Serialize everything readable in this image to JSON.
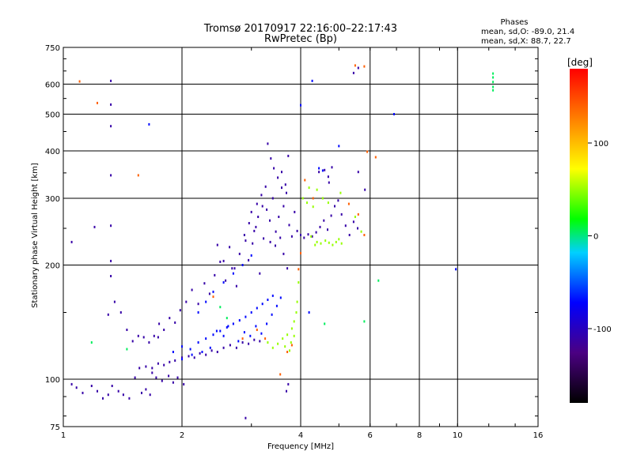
{
  "chart_data": {
    "type": "scatter",
    "title": "Tromsø 20170917 22:16:00–22:17:43",
    "subtitle": "RwPretec (Bp)",
    "xlabel": "Frequency [MHz]",
    "ylabel": "Stationary phase Virtual Height [km]",
    "x_scale": "log",
    "y_scale": "log",
    "xlim": [
      1,
      16
    ],
    "ylim": [
      75,
      750
    ],
    "x_ticks": [
      1,
      2,
      4,
      6,
      8,
      10,
      16
    ],
    "y_ticks": [
      75,
      100,
      200,
      300,
      400,
      500,
      600,
      750
    ],
    "grid": true,
    "stats": {
      "heading": "Phases",
      "line_o": "mean, sd,O: -89.0, 21.4",
      "line_x": "mean, sd,X: 88.7, 22.7"
    },
    "colorbar": {
      "label": "[deg]",
      "range": [
        -180,
        180
      ],
      "ticks": [
        100,
        0,
        -100
      ],
      "tick_labels": [
        "100",
        "0",
        "-100"
      ]
    },
    "series": [
      {
        "phase": -110,
        "points": [
          [
            1.05,
            97
          ],
          [
            1.08,
            95
          ],
          [
            1.12,
            92
          ],
          [
            1.18,
            96
          ],
          [
            1.22,
            93
          ],
          [
            1.26,
            89
          ],
          [
            1.3,
            91
          ],
          [
            1.33,
            96
          ],
          [
            1.38,
            93
          ],
          [
            1.42,
            91
          ],
          [
            1.47,
            89
          ],
          [
            1.52,
            101
          ],
          [
            1.56,
            107
          ],
          [
            1.62,
            108
          ],
          [
            1.68,
            107
          ],
          [
            1.74,
            110
          ],
          [
            1.8,
            109
          ],
          [
            1.86,
            111
          ],
          [
            1.92,
            112
          ],
          [
            2.0,
            114
          ],
          [
            2.08,
            115
          ],
          [
            2.15,
            114
          ],
          [
            2.22,
            117
          ],
          [
            2.3,
            116
          ],
          [
            2.38,
            119
          ],
          [
            2.46,
            118
          ],
          [
            2.55,
            121
          ],
          [
            2.65,
            123
          ],
          [
            2.75,
            121
          ],
          [
            2.85,
            125
          ],
          [
            2.95,
            124
          ],
          [
            3.05,
            127
          ],
          [
            3.15,
            126
          ],
          [
            1.58,
            92
          ],
          [
            1.62,
            94
          ],
          [
            1.66,
            91
          ],
          [
            1.74,
            129
          ],
          [
            1.8,
            135
          ],
          [
            1.86,
            145
          ],
          [
            1.92,
            141
          ],
          [
            1.98,
            152
          ],
          [
            2.05,
            160
          ],
          [
            2.12,
            172
          ],
          [
            2.2,
            158
          ],
          [
            2.28,
            179
          ],
          [
            2.35,
            168
          ],
          [
            2.42,
            188
          ],
          [
            2.5,
            204
          ],
          [
            2.58,
            182
          ],
          [
            2.64,
            223
          ],
          [
            2.72,
            196
          ],
          [
            2.8,
            214
          ],
          [
            2.88,
            240
          ],
          [
            2.95,
            206
          ],
          [
            3.02,
            228
          ],
          [
            3.08,
            252
          ],
          [
            3.15,
            190
          ],
          [
            3.22,
            235
          ],
          [
            3.28,
            280
          ],
          [
            3.34,
            262
          ],
          [
            3.4,
            300
          ],
          [
            3.46,
            245
          ],
          [
            3.52,
            268
          ],
          [
            3.58,
            320
          ],
          [
            3.62,
            286
          ],
          [
            3.68,
            310
          ],
          [
            3.74,
            255
          ],
          [
            3.8,
            238
          ],
          [
            3.86,
            276
          ],
          [
            3.92,
            246
          ],
          [
            4.0,
            240
          ],
          [
            4.08,
            236
          ],
          [
            4.18,
            241
          ],
          [
            4.28,
            238
          ],
          [
            4.38,
            244
          ],
          [
            4.48,
            252
          ],
          [
            4.58,
            262
          ],
          [
            4.68,
            248
          ],
          [
            4.78,
            270
          ],
          [
            4.88,
            286
          ],
          [
            4.98,
            296
          ],
          [
            5.08,
            272
          ],
          [
            5.2,
            254
          ],
          [
            5.32,
            240
          ],
          [
            5.45,
            260
          ],
          [
            5.58,
            250
          ],
          [
            3.3,
            418
          ],
          [
            3.36,
            382
          ],
          [
            3.42,
            360
          ],
          [
            3.5,
            340
          ],
          [
            3.58,
            352
          ],
          [
            3.66,
            326
          ],
          [
            3.72,
            388
          ],
          [
            3.1,
            290
          ],
          [
            3.18,
            306
          ],
          [
            3.26,
            322
          ],
          [
            3.05,
            246
          ],
          [
            3.12,
            268
          ],
          [
            3.2,
            286
          ],
          [
            2.9,
            232
          ],
          [
            2.96,
            258
          ],
          [
            3.0,
            276
          ],
          [
            3.35,
            230
          ],
          [
            3.45,
            225
          ],
          [
            3.55,
            236
          ],
          [
            3.62,
            214
          ],
          [
            3.7,
            196
          ],
          [
            4.6,
            356
          ],
          [
            4.7,
            342
          ],
          [
            4.8,
            362
          ],
          [
            4.72,
            330
          ],
          [
            4.45,
            352
          ],
          [
            5.6,
            352
          ],
          [
            5.82,
            316
          ],
          [
            2.46,
            226
          ],
          [
            2.55,
            205
          ],
          [
            2.68,
            196
          ],
          [
            2.75,
            176
          ],
          [
            1.32,
            612
          ],
          [
            1.32,
            530
          ],
          [
            1.32,
            465
          ],
          [
            1.32,
            345
          ],
          [
            1.32,
            254
          ],
          [
            1.32,
            205
          ],
          [
            5.45,
            642
          ],
          [
            5.6,
            662
          ],
          [
            2.9,
            79
          ],
          [
            3.72,
            97
          ],
          [
            3.68,
            93
          ],
          [
            1.05,
            230
          ],
          [
            1.2,
            252
          ],
          [
            1.3,
            148
          ],
          [
            1.32,
            187
          ],
          [
            1.35,
            160
          ],
          [
            1.4,
            150
          ],
          [
            1.45,
            135
          ],
          [
            1.5,
            126
          ],
          [
            1.55,
            130
          ],
          [
            1.6,
            129
          ],
          [
            1.65,
            125
          ],
          [
            1.7,
            130
          ],
          [
            1.75,
            140
          ],
          [
            1.68,
            104
          ],
          [
            1.72,
            101
          ],
          [
            1.78,
            99
          ],
          [
            1.85,
            102
          ],
          [
            1.9,
            98
          ],
          [
            1.95,
            101
          ],
          [
            2.02,
            97
          ]
        ]
      },
      {
        "phase": -70,
        "points": [
          [
            1.9,
            118
          ],
          [
            2.0,
            122
          ],
          [
            2.1,
            120
          ],
          [
            2.2,
            125
          ],
          [
            2.3,
            128
          ],
          [
            2.4,
            131
          ],
          [
            2.5,
            134
          ],
          [
            2.6,
            137
          ],
          [
            2.7,
            140
          ],
          [
            2.8,
            143
          ],
          [
            2.9,
            146
          ],
          [
            3.0,
            150
          ],
          [
            3.1,
            154
          ],
          [
            3.2,
            158
          ],
          [
            3.3,
            162
          ],
          [
            3.4,
            166
          ],
          [
            2.2,
            150
          ],
          [
            2.3,
            160
          ],
          [
            2.4,
            170
          ],
          [
            2.55,
            180
          ],
          [
            2.7,
            190
          ],
          [
            2.85,
            200
          ],
          [
            3.0,
            212
          ],
          [
            2.45,
            134
          ],
          [
            2.55,
            130
          ],
          [
            2.62,
            138
          ],
          [
            2.78,
            126
          ],
          [
            2.88,
            133
          ],
          [
            2.98,
            130
          ],
          [
            3.08,
            138
          ],
          [
            3.18,
            132
          ],
          [
            3.28,
            140
          ],
          [
            3.38,
            148
          ],
          [
            3.48,
            156
          ],
          [
            3.56,
            164
          ],
          [
            2.0,
            113
          ],
          [
            2.12,
            116
          ],
          [
            2.25,
            118
          ],
          [
            2.36,
            121
          ],
          [
            4.45,
            360
          ],
          [
            4.55,
            355
          ],
          [
            1.65,
            470
          ],
          [
            4.28,
            612
          ],
          [
            5.0,
            412
          ],
          [
            6.9,
            500
          ],
          [
            9.9,
            195
          ],
          [
            4.2,
            150
          ],
          [
            4.0,
            528
          ]
        ]
      },
      {
        "phase": 50,
        "points": [
          [
            4.4,
            230
          ],
          [
            4.5,
            228
          ],
          [
            4.62,
            232
          ],
          [
            4.72,
            229
          ],
          [
            4.82,
            226
          ],
          [
            4.92,
            230
          ],
          [
            5.0,
            234
          ],
          [
            5.08,
            228
          ],
          [
            4.25,
            238
          ],
          [
            4.35,
            226
          ],
          [
            3.5,
            124
          ],
          [
            3.6,
            128
          ],
          [
            3.7,
            131
          ],
          [
            3.8,
            136
          ],
          [
            3.4,
            121
          ],
          [
            3.3,
            125
          ],
          [
            3.65,
            122
          ],
          [
            3.75,
            119
          ],
          [
            3.85,
            142
          ],
          [
            3.9,
            150
          ],
          [
            3.92,
            160
          ],
          [
            3.95,
            180
          ],
          [
            4.05,
            300
          ],
          [
            4.2,
            320
          ],
          [
            4.4,
            316
          ],
          [
            4.55,
            300
          ],
          [
            4.7,
            292
          ],
          [
            4.3,
            285
          ],
          [
            5.5,
            268
          ],
          [
            5.7,
            245
          ],
          [
            5.05,
            310
          ],
          [
            4.15,
            292
          ],
          [
            3.85,
            130
          ],
          [
            3.78,
            125
          ]
        ]
      },
      {
        "phase": 140,
        "points": [
          [
            3.7,
            118
          ],
          [
            3.8,
            123
          ],
          [
            3.95,
            195
          ],
          [
            4.0,
            215
          ],
          [
            4.1,
            335
          ],
          [
            4.3,
            300
          ],
          [
            5.3,
            290
          ],
          [
            5.6,
            272
          ],
          [
            5.8,
            240
          ],
          [
            3.55,
            103
          ],
          [
            1.1,
            610
          ],
          [
            1.22,
            535
          ],
          [
            1.55,
            345
          ],
          [
            5.5,
            672
          ],
          [
            5.8,
            668
          ],
          [
            2.4,
            165
          ],
          [
            2.85,
            128
          ],
          [
            3.1,
            135
          ],
          [
            3.25,
            128
          ],
          [
            5.9,
            398
          ],
          [
            6.2,
            385
          ]
        ]
      },
      {
        "phase": 5,
        "points": [
          [
            12.3,
            590
          ],
          [
            12.3,
            608
          ],
          [
            12.3,
            625
          ],
          [
            12.3,
            640
          ],
          [
            12.3,
            578
          ],
          [
            1.18,
            125
          ],
          [
            6.3,
            182
          ],
          [
            5.8,
            142
          ],
          [
            1.45,
            120
          ],
          [
            2.6,
            145
          ],
          [
            2.5,
            155
          ],
          [
            4.6,
            140
          ]
        ]
      }
    ]
  }
}
